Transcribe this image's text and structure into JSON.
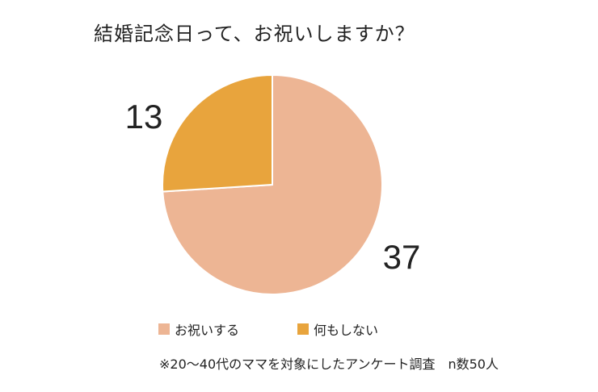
{
  "chart_data": {
    "type": "pie",
    "title": "結婚記念日って、お祝いしますか？",
    "categories": [
      "お祝いする",
      "何もしない"
    ],
    "values": [
      37,
      13
    ],
    "colors": [
      "#EDB594",
      "#E8A43D"
    ],
    "legend_position": "bottom",
    "note": "※20〜40代のママを対象にしたアンケート調査　n数50人"
  }
}
